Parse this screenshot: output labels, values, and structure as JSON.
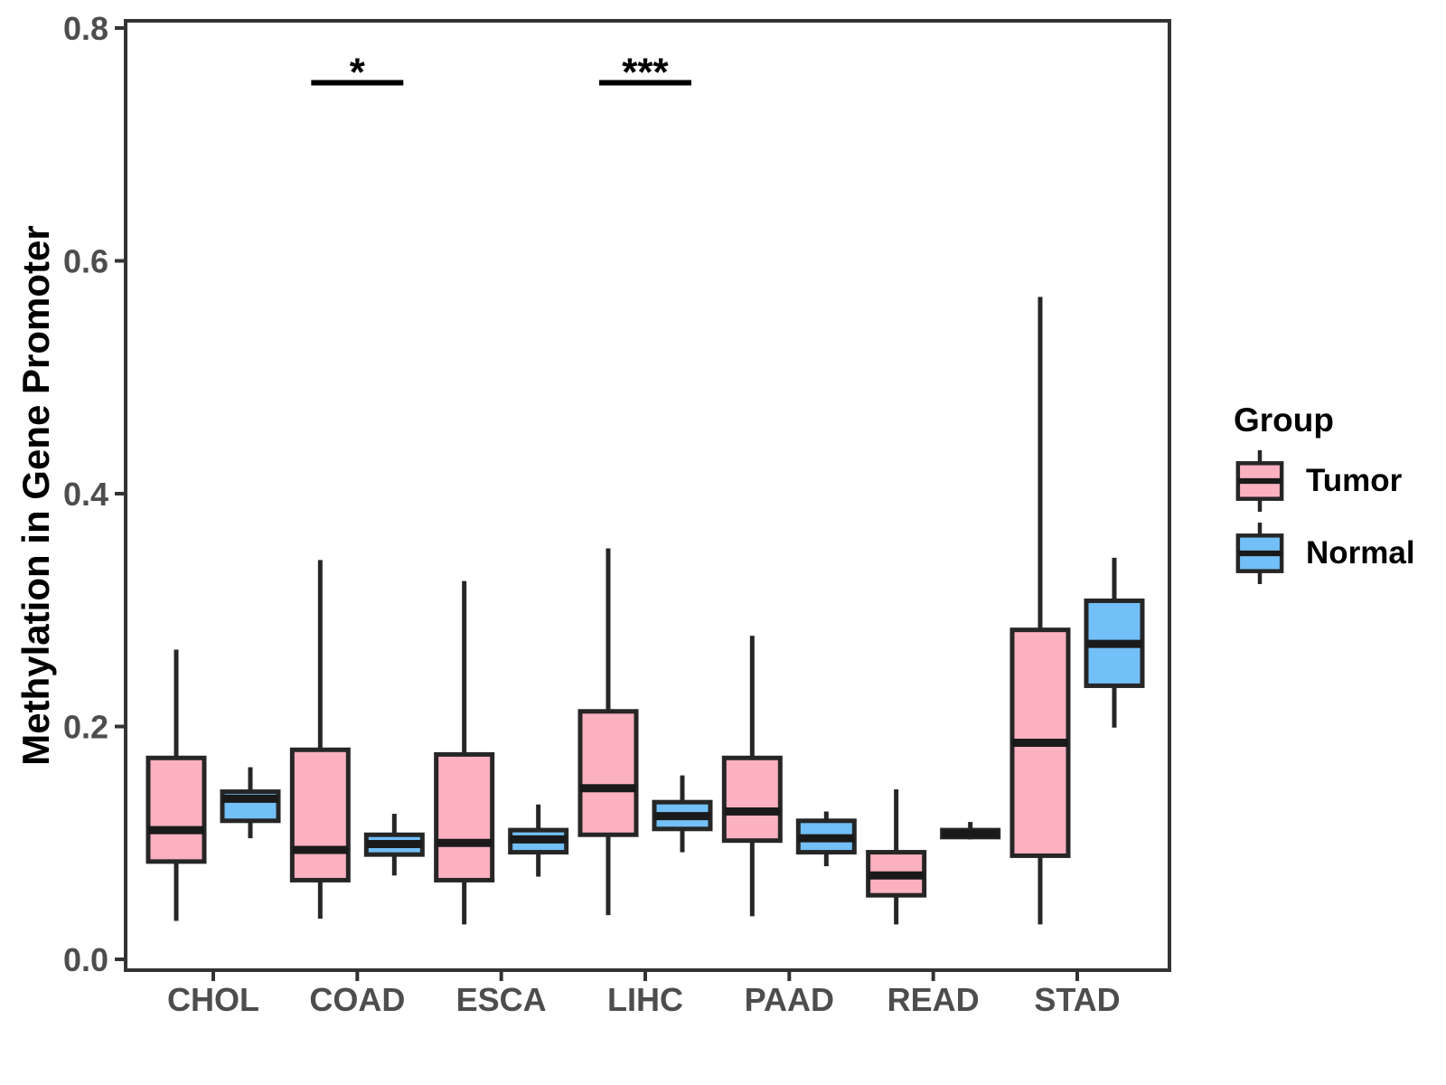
{
  "chart_data": {
    "type": "grouped_boxplot",
    "title": "",
    "xlabel": "",
    "ylabel": "Methylation in Gene Promoter",
    "categories": [
      "CHOL",
      "COAD",
      "ESCA",
      "LIHC",
      "PAAD",
      "READ",
      "STAD"
    ],
    "y_ticks": [
      "0.0",
      "0.2",
      "0.4",
      "0.6",
      "0.8"
    ],
    "ylim": [
      0,
      0.8
    ],
    "grid": false,
    "legend": {
      "title": "Group",
      "position": "right",
      "entries": [
        {
          "label": "Tumor",
          "color": "#FBB1C0"
        },
        {
          "label": "Normal",
          "color": "#73BFF7"
        }
      ]
    },
    "series": [
      {
        "name": "Tumor",
        "color": "#FBB1C0",
        "boxes": [
          {
            "category": "CHOL",
            "whisker_low": 0.033,
            "q1": 0.084,
            "median": 0.111,
            "q3": 0.173,
            "whisker_high": 0.266
          },
          {
            "category": "COAD",
            "whisker_low": 0.035,
            "q1": 0.068,
            "median": 0.094,
            "q3": 0.18,
            "whisker_high": 0.343
          },
          {
            "category": "ESCA",
            "whisker_low": 0.03,
            "q1": 0.068,
            "median": 0.1,
            "q3": 0.176,
            "whisker_high": 0.325
          },
          {
            "category": "LIHC",
            "whisker_low": 0.038,
            "q1": 0.107,
            "median": 0.147,
            "q3": 0.213,
            "whisker_high": 0.353
          },
          {
            "category": "PAAD",
            "whisker_low": 0.037,
            "q1": 0.102,
            "median": 0.127,
            "q3": 0.173,
            "whisker_high": 0.278
          },
          {
            "category": "READ",
            "whisker_low": 0.03,
            "q1": 0.055,
            "median": 0.072,
            "q3": 0.092,
            "whisker_high": 0.146
          },
          {
            "category": "STAD",
            "whisker_low": 0.03,
            "q1": 0.089,
            "median": 0.186,
            "q3": 0.283,
            "whisker_high": 0.569
          }
        ]
      },
      {
        "name": "Normal",
        "color": "#73BFF7",
        "boxes": [
          {
            "category": "CHOL",
            "whisker_low": 0.104,
            "q1": 0.119,
            "median": 0.138,
            "q3": 0.144,
            "whisker_high": 0.165
          },
          {
            "category": "COAD",
            "whisker_low": 0.072,
            "q1": 0.09,
            "median": 0.099,
            "q3": 0.107,
            "whisker_high": 0.125
          },
          {
            "category": "ESCA",
            "whisker_low": 0.071,
            "q1": 0.092,
            "median": 0.103,
            "q3": 0.111,
            "whisker_high": 0.133
          },
          {
            "category": "LIHC",
            "whisker_low": 0.092,
            "q1": 0.112,
            "median": 0.123,
            "q3": 0.135,
            "whisker_high": 0.158
          },
          {
            "category": "PAAD",
            "whisker_low": 0.08,
            "q1": 0.092,
            "median": 0.104,
            "q3": 0.119,
            "whisker_high": 0.127
          },
          {
            "category": "READ",
            "whisker_low": 0.103,
            "q1": 0.105,
            "median": 0.108,
            "q3": 0.111,
            "whisker_high": 0.118
          },
          {
            "category": "STAD",
            "whisker_low": 0.199,
            "q1": 0.235,
            "median": 0.271,
            "q3": 0.308,
            "whisker_high": 0.345
          }
        ]
      }
    ],
    "annotations": [
      {
        "category": "COAD",
        "label": "*",
        "bar_y": 0.753
      },
      {
        "category": "LIHC",
        "label": "***",
        "bar_y": 0.753
      }
    ],
    "colors": {
      "box_stroke": "#262626",
      "median_stroke": "#1A1A1A",
      "panel_border": "#333333",
      "tick_label": "#4D4D4D",
      "axis_title": "#000000",
      "annotation": "#000000"
    }
  }
}
